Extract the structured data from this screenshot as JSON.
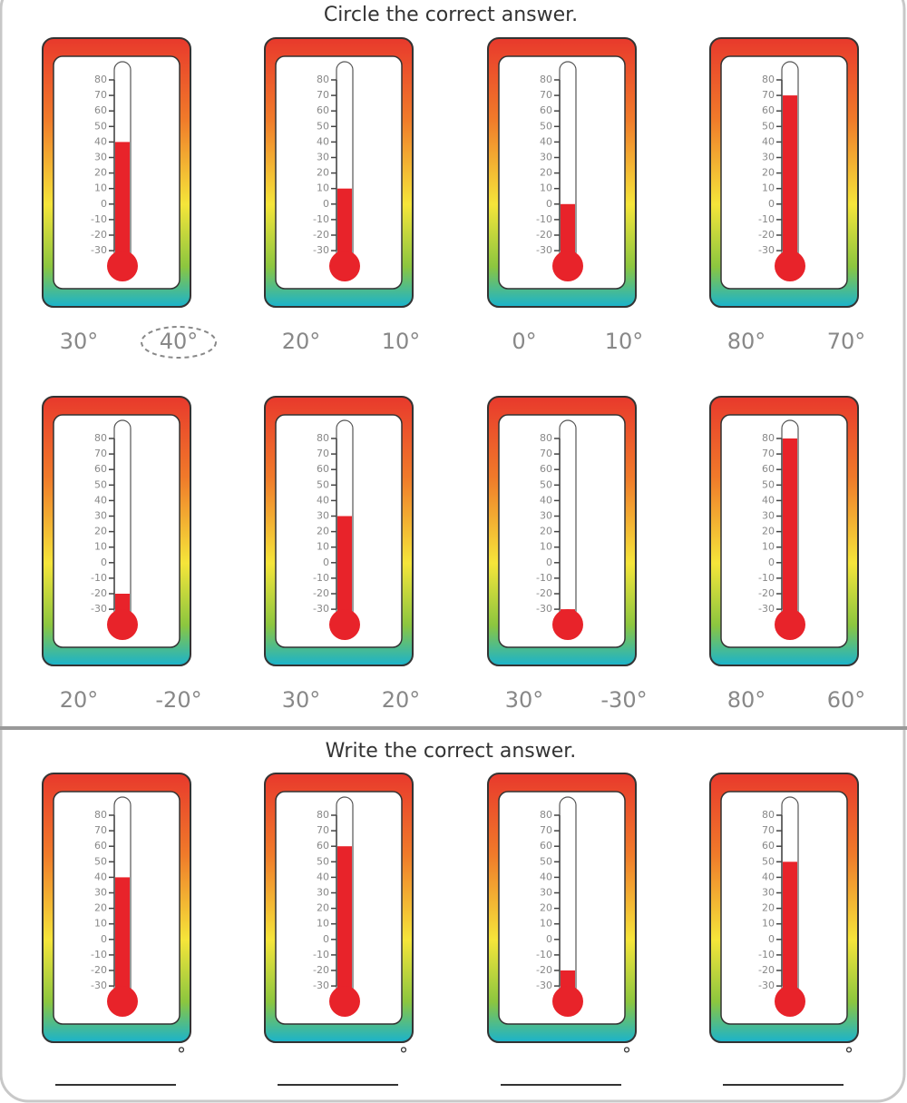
{
  "scale": [
    80,
    70,
    60,
    50,
    40,
    30,
    20,
    10,
    0,
    -10,
    -20,
    -30
  ],
  "circle_section": {
    "title": "Circle the correct answer.",
    "items": [
      {
        "reading": 40,
        "options": [
          "30°",
          "40°"
        ],
        "circled": 1
      },
      {
        "reading": 10,
        "options": [
          "20°",
          "10°"
        ]
      },
      {
        "reading": 0,
        "options": [
          "0°",
          "10°"
        ]
      },
      {
        "reading": 70,
        "options": [
          "80°",
          "70°"
        ]
      },
      {
        "reading": -20,
        "options": [
          "20°",
          "-20°"
        ]
      },
      {
        "reading": 30,
        "options": [
          "30°",
          "20°"
        ]
      },
      {
        "reading": -30,
        "options": [
          "30°",
          "-30°"
        ]
      },
      {
        "reading": 80,
        "options": [
          "80°",
          "60°"
        ]
      }
    ]
  },
  "write_section": {
    "title": "Write the correct answer.",
    "items": [
      {
        "reading": 40,
        "unit": "°"
      },
      {
        "reading": 60,
        "unit": "°"
      },
      {
        "reading": -20,
        "unit": "°"
      },
      {
        "reading": 50,
        "unit": "°"
      }
    ]
  }
}
